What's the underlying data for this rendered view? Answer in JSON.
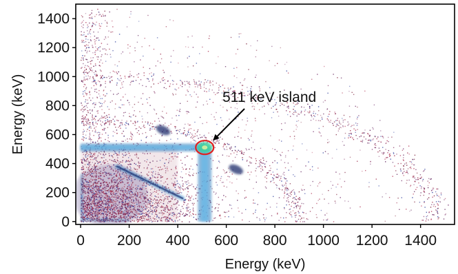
{
  "chart_data": {
    "type": "heatmap",
    "title": "",
    "xlabel": "Energy (keV)",
    "ylabel": "Energy (keV)",
    "xlim": [
      -20,
      1540
    ],
    "ylim": [
      -20,
      1500
    ],
    "x_ticks": [
      0,
      200,
      400,
      600,
      800,
      1000,
      1200,
      1400
    ],
    "y_ticks": [
      0,
      200,
      400,
      600,
      800,
      1000,
      1200,
      1400
    ],
    "grid": false,
    "features": [
      {
        "name": "horizontal band",
        "y": 511,
        "x_range": [
          0,
          511
        ]
      },
      {
        "name": "vertical band",
        "x": 511,
        "y_range": [
          0,
          511
        ]
      },
      {
        "name": "island",
        "x": 511,
        "y": 511
      },
      {
        "name": "diagonal feature",
        "x_range": [
          150,
          420
        ],
        "y_range": [
          380,
          160
        ]
      },
      {
        "name": "blob",
        "x": 340,
        "y": 630
      },
      {
        "name": "blob",
        "x": 640,
        "y": 360
      }
    ],
    "annotations": [
      {
        "text": "511 keV island",
        "x": 511,
        "y": 511
      }
    ],
    "colors": {
      "scatter_dots": "#8a1f3c",
      "band": "#2f7fc0",
      "band_core": "#63b8e8",
      "island_core": "#3fd0a0",
      "island_ring": "#e02020"
    }
  }
}
